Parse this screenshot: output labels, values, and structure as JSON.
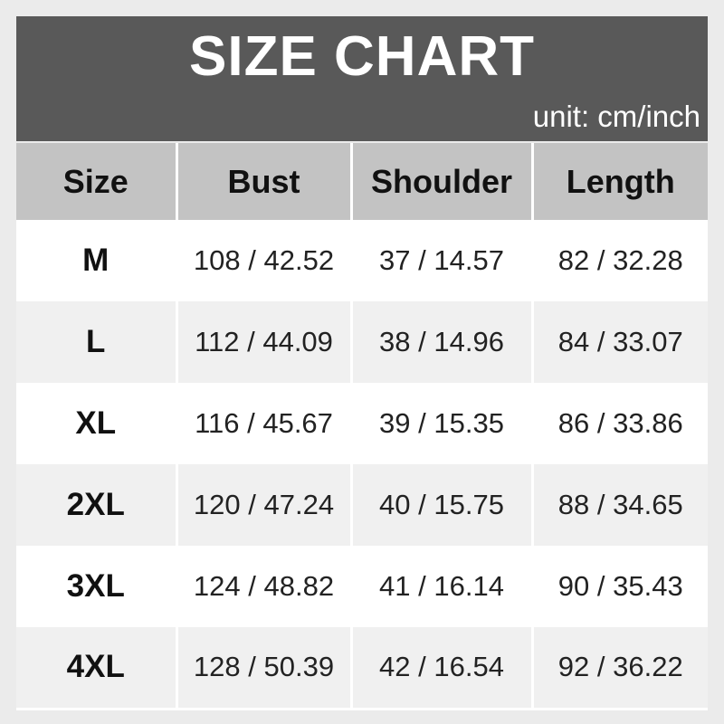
{
  "banner": {
    "title": "SIZE CHART",
    "unit_label": "unit: cm/inch"
  },
  "chart_data": {
    "type": "table",
    "title": "SIZE CHART",
    "unit": "cm/inch",
    "columns": [
      "Size",
      "Bust",
      "Shoulder",
      "Length"
    ],
    "rows": [
      [
        "M",
        "108 / 42.52",
        "37 / 14.57",
        "82 / 32.28"
      ],
      [
        "L",
        "112 / 44.09",
        "38 / 14.96",
        "84 / 33.07"
      ],
      [
        "XL",
        "116 / 45.67",
        "39 / 15.35",
        "86 / 33.86"
      ],
      [
        "2XL",
        "120 / 47.24",
        "40 / 15.75",
        "88 / 34.65"
      ],
      [
        "3XL",
        "124 / 48.82",
        "41 / 16.14",
        "90 / 35.43"
      ],
      [
        "4XL",
        "128 / 50.39",
        "42 / 16.54",
        "92 / 36.22"
      ]
    ]
  },
  "colors": {
    "page_bg": "#ebebeb",
    "banner_bg": "#595959",
    "banner_text": "#ffffff",
    "header_row_bg": "#c3c3c3",
    "row_bg": "#ffffff",
    "row_alt_bg": "#f0f0f0",
    "header_text": "#111111",
    "cell_text": "#222222",
    "separator": "#ffffff"
  }
}
